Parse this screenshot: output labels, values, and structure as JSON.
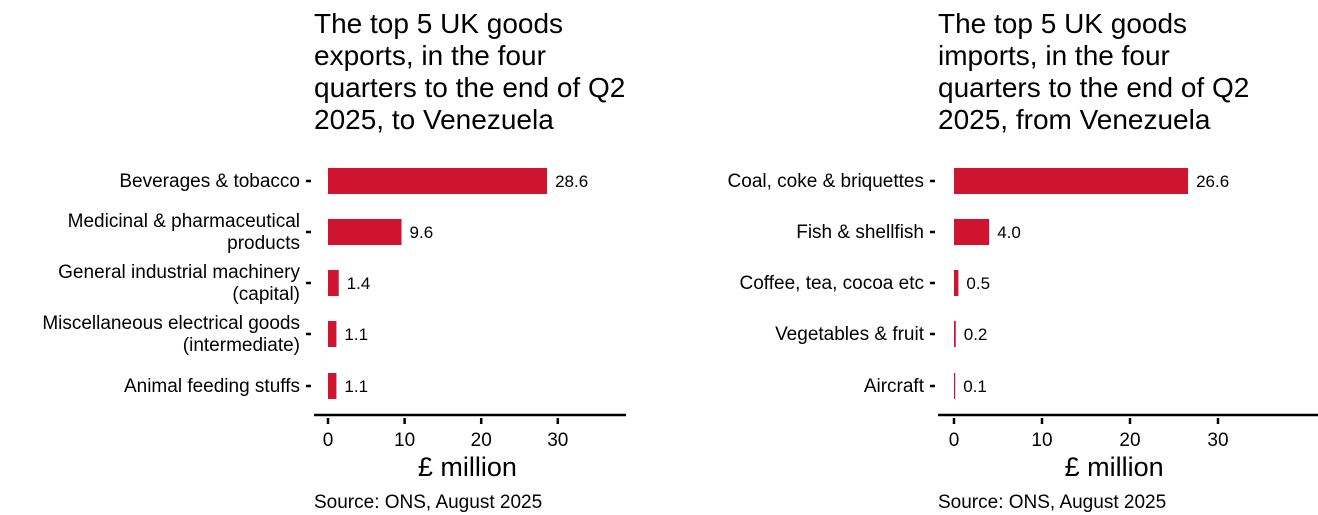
{
  "colors": {
    "bar": "#cf1430",
    "axis": "#000000",
    "text": "#000000"
  },
  "charts": [
    {
      "title": "The top 5 UK goods\nexports, in the four\nquarters to the end of Q2\n2025, to Venezuela",
      "source": "Source: ONS, August 2025"
    },
    {
      "title": "The top 5 UK goods\nimports, in the four\nquarters to the end of Q2\n2025, from Venezuela",
      "source": "Source: ONS, August 2025"
    }
  ],
  "chart_data": [
    {
      "type": "bar",
      "orientation": "horizontal",
      "title": "The top 5 UK goods exports, in the four quarters to the end of Q2 2025, to Venezuela",
      "categories": [
        "Beverages & tobacco",
        "Medicinal & pharmaceutical\nproducts",
        "General industrial machinery\n(capital)",
        "Miscellaneous electrical goods\n(intermediate)",
        "Animal feeding stuffs"
      ],
      "values": [
        28.6,
        9.6,
        1.4,
        1.1,
        1.1
      ],
      "data_labels": [
        "28.6",
        "9.6",
        "1.4",
        "1.1",
        "1.1"
      ],
      "xlabel": "£ million",
      "ylabel": "",
      "xlim": [
        0,
        38
      ],
      "xticks": [
        0,
        10,
        20,
        30
      ],
      "xtick_labels": [
        "0",
        "10",
        "20",
        "30"
      ],
      "grid": false,
      "legend": "none"
    },
    {
      "type": "bar",
      "orientation": "horizontal",
      "title": "The top 5 UK goods imports, in the four quarters to the end of Q2 2025, from Venezuela",
      "categories": [
        "Coal, coke & briquettes",
        "Fish & shellfish",
        "Coffee, tea, cocoa etc",
        "Vegetables & fruit",
        "Aircraft"
      ],
      "values": [
        26.6,
        4.0,
        0.5,
        0.2,
        0.1
      ],
      "data_labels": [
        "26.6",
        "4.0",
        "0.5",
        "0.2",
        "0.1"
      ],
      "xlabel": "£ million",
      "ylabel": "",
      "xlim": [
        0,
        38
      ],
      "xticks": [
        0,
        10,
        20,
        30
      ],
      "xtick_labels": [
        "0",
        "10",
        "20",
        "30"
      ],
      "grid": false,
      "legend": "none"
    }
  ]
}
